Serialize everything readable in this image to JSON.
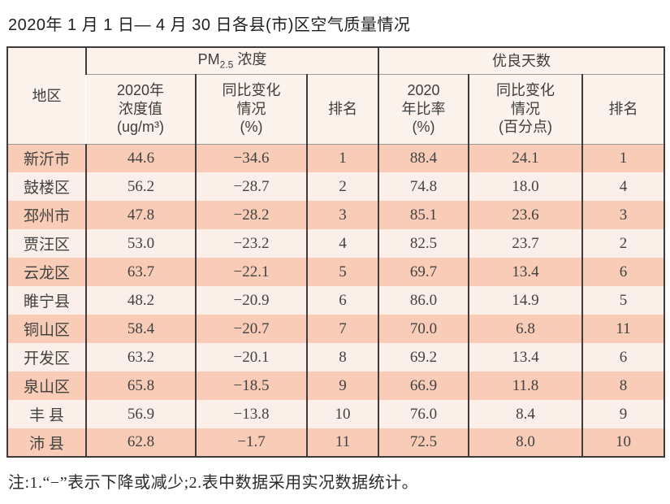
{
  "page": {
    "title": "2020年 1 月 1 日— 4 月 30 日各县(市)区空气质量情况",
    "note": "注:1.“−”表示下降或减少;2.表中数据采用实况数据统计。"
  },
  "colors": {
    "row_odd": "#f8ccb6",
    "row_even": "#fbf0e9",
    "header_bg": "#fbf2ec",
    "border_dark": "#3c3c3c",
    "border_light": "#9b9b9b"
  },
  "table": {
    "header": {
      "region": "地区",
      "group_pm25": {
        "prefix": "PM",
        "sub": "2.5",
        "suffix": " 浓度"
      },
      "group_good_days": "优良天数",
      "sub_headers": [
        "2020年\n浓度值\n(ug/m³)",
        "同比变化\n情况\n(%)",
        "排名",
        "2020\n年比率\n(%)",
        "同比变化\n情况\n(百分点)",
        "排名"
      ]
    },
    "rows": [
      [
        "新沂市",
        "44.6",
        "−34.6",
        "1",
        "88.4",
        "24.1",
        "1"
      ],
      [
        "鼓楼区",
        "56.2",
        "−28.7",
        "2",
        "74.8",
        "18.0",
        "4"
      ],
      [
        "邳州市",
        "47.8",
        "−28.2",
        "3",
        "85.1",
        "23.6",
        "3"
      ],
      [
        "贾汪区",
        "53.0",
        "−23.2",
        "4",
        "82.5",
        "23.7",
        "2"
      ],
      [
        "云龙区",
        "63.7",
        "−22.1",
        "5",
        "69.7",
        "13.4",
        "6"
      ],
      [
        "睢宁县",
        "48.2",
        "−20.9",
        "6",
        "86.0",
        "14.9",
        "5"
      ],
      [
        "铜山区",
        "58.4",
        "−20.7",
        "7",
        "70.0",
        "6.8",
        "11"
      ],
      [
        "开发区",
        "63.2",
        "−20.1",
        "8",
        "69.2",
        "13.4",
        "6"
      ],
      [
        "泉山区",
        "65.8",
        "−18.5",
        "9",
        "66.9",
        "11.8",
        "8"
      ],
      [
        "丰 县",
        "56.9",
        "−13.8",
        "10",
        "76.0",
        "8.4",
        "9"
      ],
      [
        "沛 县",
        "62.8",
        "−1.7",
        "11",
        "72.5",
        "8.0",
        "10"
      ]
    ]
  },
  "chart_data": {
    "type": "table",
    "title": "2020年1月1日—4月30日各县(市)区空气质量情况",
    "column_groups": [
      "地区",
      "PM2.5浓度",
      "优良天数"
    ],
    "columns": [
      "地区",
      "PM2.5 2020年浓度值(ug/m³)",
      "PM2.5 同比变化情况(%)",
      "PM2.5 排名",
      "优良天数 2020年比率(%)",
      "优良天数 同比变化情况(百分点)",
      "优良天数 排名"
    ],
    "rows": [
      [
        "新沂市",
        44.6,
        -34.6,
        1,
        88.4,
        24.1,
        1
      ],
      [
        "鼓楼区",
        56.2,
        -28.7,
        2,
        74.8,
        18.0,
        4
      ],
      [
        "邳州市",
        47.8,
        -28.2,
        3,
        85.1,
        23.6,
        3
      ],
      [
        "贾汪区",
        53.0,
        -23.2,
        4,
        82.5,
        23.7,
        2
      ],
      [
        "云龙区",
        63.7,
        -22.1,
        5,
        69.7,
        13.4,
        6
      ],
      [
        "睢宁县",
        48.2,
        -20.9,
        6,
        86.0,
        14.9,
        5
      ],
      [
        "铜山区",
        58.4,
        -20.7,
        7,
        70.0,
        6.8,
        11
      ],
      [
        "开发区",
        63.2,
        -20.1,
        8,
        69.2,
        13.4,
        6
      ],
      [
        "泉山区",
        65.8,
        -18.5,
        9,
        66.9,
        11.8,
        8
      ],
      [
        "丰县",
        56.9,
        -13.8,
        10,
        76.0,
        8.4,
        9
      ],
      [
        "沛县",
        62.8,
        -1.7,
        11,
        72.5,
        8.0,
        10
      ]
    ],
    "note": "注:1.“−”表示下降或减少;2.表中数据采用实况数据统计。"
  }
}
